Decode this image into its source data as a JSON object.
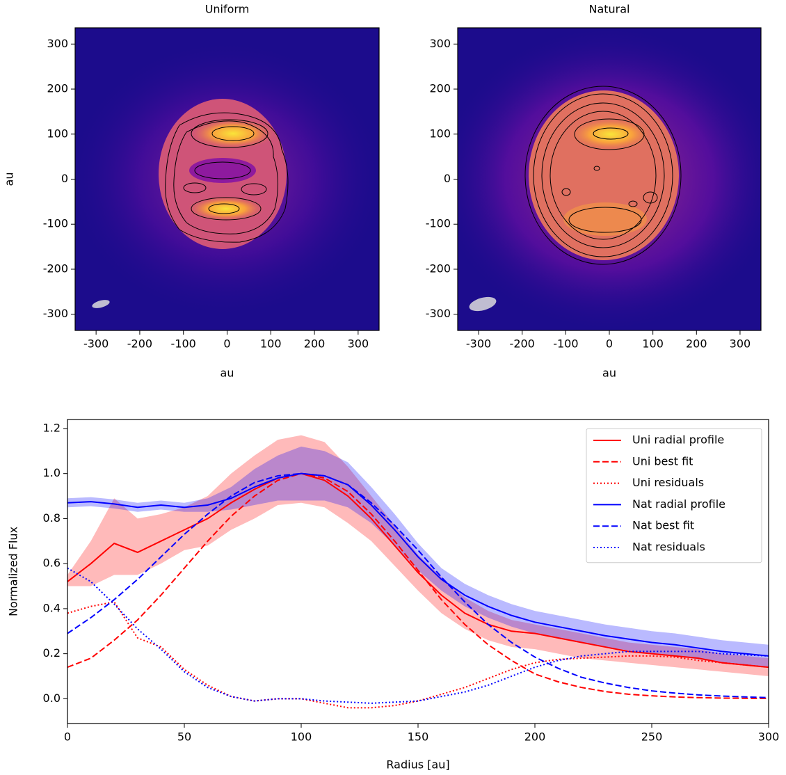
{
  "chart_data": [
    {
      "type": "image",
      "title": "Uniform",
      "xlabel": "au",
      "ylabel": "au",
      "xlim": [
        -348,
        348
      ],
      "ylim": [
        -336,
        336
      ],
      "xticks": [
        -300,
        -200,
        -100,
        0,
        100,
        200,
        300
      ],
      "yticks": [
        -300,
        -200,
        -100,
        0,
        100,
        200,
        300
      ]
    },
    {
      "type": "image",
      "title": "Natural",
      "xlabel": "au",
      "xlim": [
        -348,
        348
      ],
      "ylim": [
        -336,
        336
      ],
      "xticks": [
        -300,
        -200,
        -100,
        0,
        100,
        200,
        300
      ],
      "yticks": [
        -300,
        -200,
        -100,
        0,
        100,
        200,
        300
      ]
    },
    {
      "type": "line",
      "xlabel": "Radius [au]",
      "ylabel": "Normalized Flux",
      "xlim": [
        0,
        300
      ],
      "ylim": [
        -0.11,
        1.24
      ],
      "xticks": [
        0,
        50,
        100,
        150,
        200,
        250,
        300
      ],
      "yticks": [
        {
          "value": 0,
          "label": "0.0"
        },
        0.2,
        0.4,
        0.6,
        0.8,
        {
          "value": 1,
          "label": "1.0"
        },
        1.2
      ],
      "legend": "upper right",
      "x": [
        0,
        10,
        20,
        30,
        40,
        50,
        60,
        70,
        80,
        90,
        100,
        110,
        120,
        130,
        140,
        150,
        160,
        170,
        180,
        190,
        200,
        210,
        220,
        230,
        240,
        250,
        260,
        270,
        280,
        290,
        300
      ],
      "series": [
        {
          "name": "Uni radial profile",
          "color": "#ff0000",
          "dash": "solid",
          "values": [
            0.52,
            0.6,
            0.69,
            0.65,
            0.7,
            0.75,
            0.8,
            0.87,
            0.93,
            0.98,
            1.0,
            0.97,
            0.9,
            0.8,
            0.68,
            0.56,
            0.46,
            0.38,
            0.33,
            0.3,
            0.29,
            0.27,
            0.25,
            0.23,
            0.21,
            0.2,
            0.19,
            0.18,
            0.16,
            0.15,
            0.14
          ],
          "band_color": "#ff0000",
          "band_upper": [
            0.55,
            0.7,
            0.89,
            0.8,
            0.82,
            0.85,
            0.9,
            1.0,
            1.08,
            1.15,
            1.17,
            1.14,
            1.03,
            0.9,
            0.77,
            0.64,
            0.54,
            0.45,
            0.39,
            0.35,
            0.33,
            0.31,
            0.29,
            0.27,
            0.25,
            0.24,
            0.23,
            0.22,
            0.2,
            0.19,
            0.18
          ],
          "band_lower": [
            0.5,
            0.5,
            0.55,
            0.55,
            0.6,
            0.66,
            0.68,
            0.75,
            0.8,
            0.86,
            0.87,
            0.85,
            0.78,
            0.7,
            0.59,
            0.48,
            0.38,
            0.31,
            0.26,
            0.23,
            0.22,
            0.2,
            0.18,
            0.17,
            0.16,
            0.15,
            0.14,
            0.13,
            0.12,
            0.11,
            0.1
          ]
        },
        {
          "name": "Uni best fit",
          "color": "#ff0000",
          "dash": "dashed",
          "values": [
            0.14,
            0.18,
            0.26,
            0.35,
            0.46,
            0.58,
            0.7,
            0.81,
            0.9,
            0.97,
            1.0,
            0.98,
            0.92,
            0.82,
            0.7,
            0.57,
            0.44,
            0.33,
            0.24,
            0.17,
            0.11,
            0.075,
            0.05,
            0.032,
            0.02,
            0.013,
            0.008,
            0.005,
            0.003,
            0.002,
            0.001
          ]
        },
        {
          "name": "Uni residuals",
          "color": "#ff0000",
          "dash": "dotted",
          "values": [
            0.38,
            0.41,
            0.43,
            0.27,
            0.23,
            0.13,
            0.06,
            0.01,
            -0.01,
            0.0,
            0.0,
            -0.02,
            -0.04,
            -0.04,
            -0.03,
            -0.01,
            0.02,
            0.05,
            0.09,
            0.13,
            0.16,
            0.175,
            0.18,
            0.185,
            0.19,
            0.19,
            0.185,
            0.17,
            0.16,
            0.15,
            0.14
          ]
        },
        {
          "name": "Nat radial profile",
          "color": "#0000ff",
          "dash": "solid",
          "values": [
            0.87,
            0.875,
            0.865,
            0.85,
            0.86,
            0.85,
            0.86,
            0.89,
            0.94,
            0.98,
            1.0,
            0.99,
            0.95,
            0.86,
            0.75,
            0.63,
            0.53,
            0.46,
            0.41,
            0.37,
            0.34,
            0.32,
            0.3,
            0.28,
            0.265,
            0.25,
            0.24,
            0.225,
            0.21,
            0.2,
            0.19
          ],
          "band_color": "#0000ff",
          "band_upper": [
            0.89,
            0.895,
            0.885,
            0.87,
            0.88,
            0.87,
            0.89,
            0.94,
            1.02,
            1.08,
            1.12,
            1.1,
            1.05,
            0.94,
            0.82,
            0.69,
            0.58,
            0.51,
            0.46,
            0.42,
            0.39,
            0.37,
            0.35,
            0.33,
            0.315,
            0.3,
            0.29,
            0.275,
            0.26,
            0.25,
            0.24
          ],
          "band_lower": [
            0.85,
            0.855,
            0.845,
            0.83,
            0.84,
            0.83,
            0.83,
            0.84,
            0.86,
            0.88,
            0.88,
            0.88,
            0.85,
            0.78,
            0.68,
            0.57,
            0.48,
            0.41,
            0.36,
            0.32,
            0.29,
            0.27,
            0.25,
            0.23,
            0.215,
            0.2,
            0.19,
            0.175,
            0.16,
            0.15,
            0.14
          ]
        },
        {
          "name": "Nat best fit",
          "color": "#0000ff",
          "dash": "dashed",
          "values": [
            0.29,
            0.36,
            0.44,
            0.53,
            0.63,
            0.73,
            0.82,
            0.9,
            0.96,
            0.99,
            1.0,
            0.99,
            0.95,
            0.87,
            0.77,
            0.66,
            0.54,
            0.43,
            0.33,
            0.25,
            0.185,
            0.135,
            0.095,
            0.07,
            0.05,
            0.035,
            0.025,
            0.017,
            0.012,
            0.008,
            0.005
          ]
        },
        {
          "name": "Nat residuals",
          "color": "#0000ff",
          "dash": "dotted",
          "values": [
            0.58,
            0.52,
            0.42,
            0.31,
            0.22,
            0.12,
            0.05,
            0.01,
            -0.01,
            0.0,
            0.0,
            -0.01,
            -0.015,
            -0.02,
            -0.015,
            -0.01,
            0.01,
            0.03,
            0.06,
            0.1,
            0.14,
            0.17,
            0.19,
            0.2,
            0.21,
            0.21,
            0.21,
            0.21,
            0.2,
            0.195,
            0.19
          ]
        }
      ]
    }
  ]
}
